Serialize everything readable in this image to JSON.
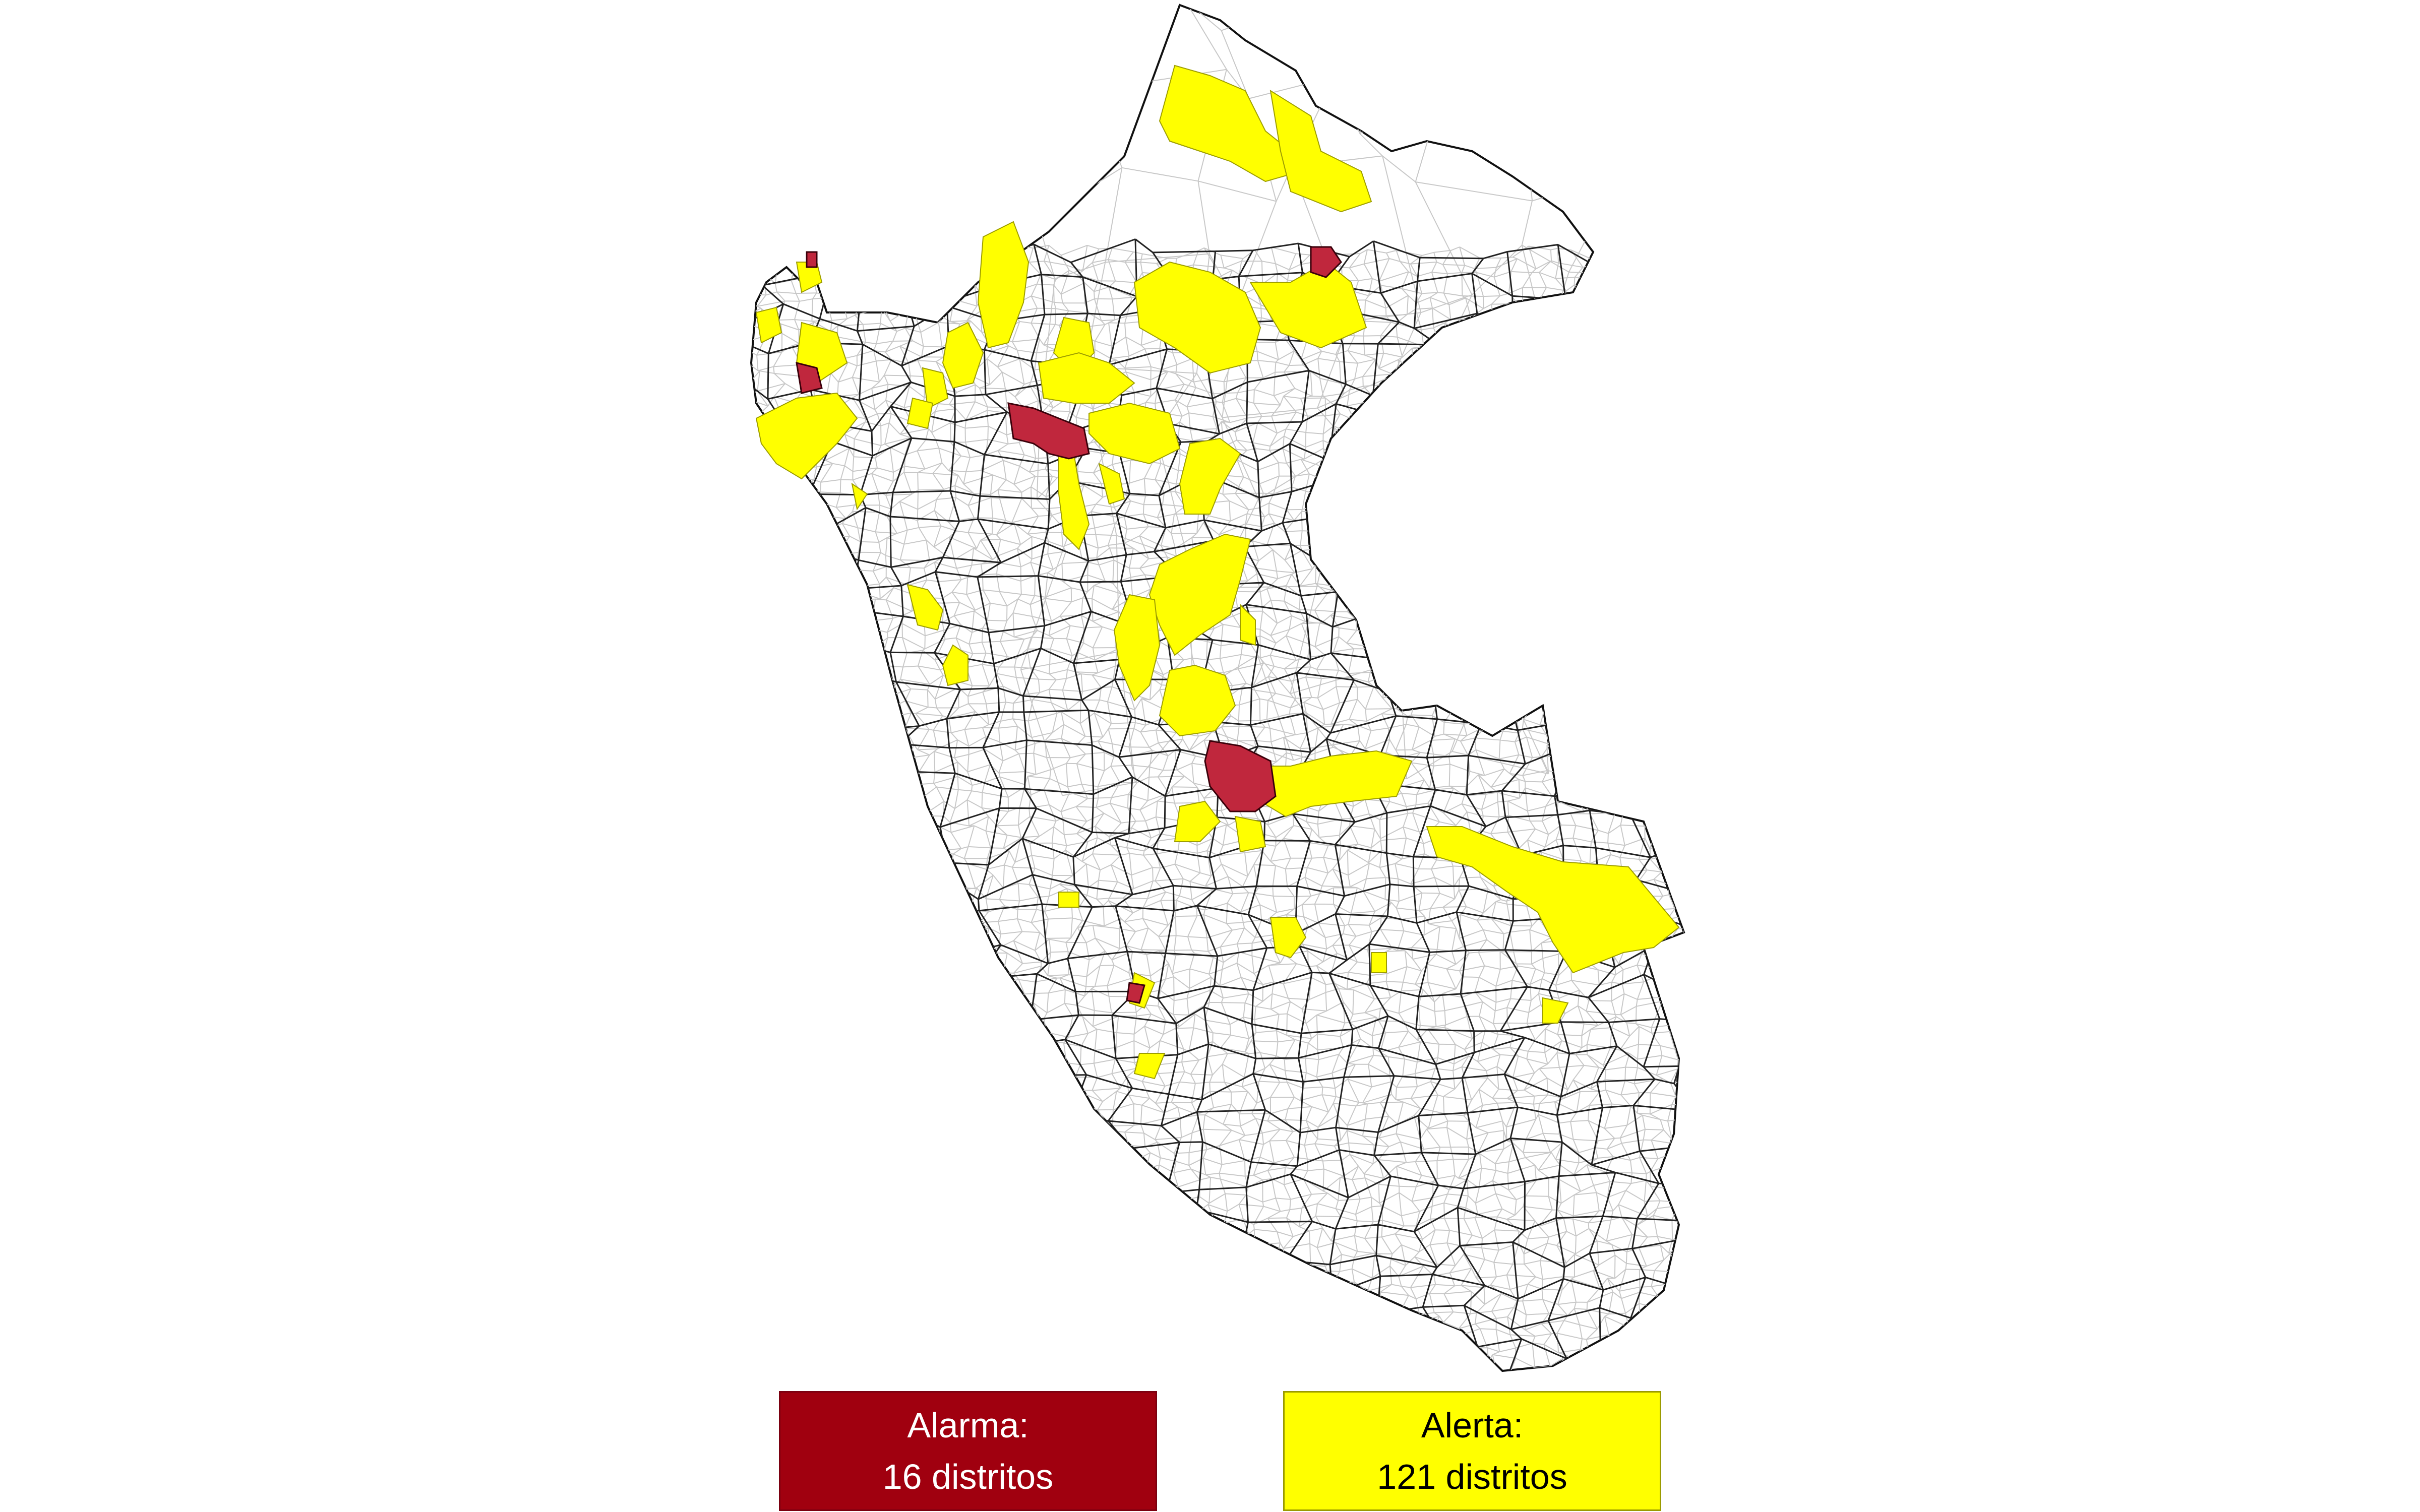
{
  "map": {
    "subject": "Peru district map",
    "colors": {
      "background": "#ffffff",
      "district_fill": "#ffffff",
      "district_border_light": "#c8c8c8",
      "province_border": "#111111",
      "alarm_fill": "#c0273d",
      "alert_fill": "#ffff00"
    }
  },
  "legend": {
    "alarm": {
      "title": "Alarma:",
      "count_text": "16 distritos",
      "color": "#a0000f"
    },
    "alert": {
      "title": "Alerta:",
      "count_text": "121 distritos",
      "color": "#ffff00"
    }
  }
}
